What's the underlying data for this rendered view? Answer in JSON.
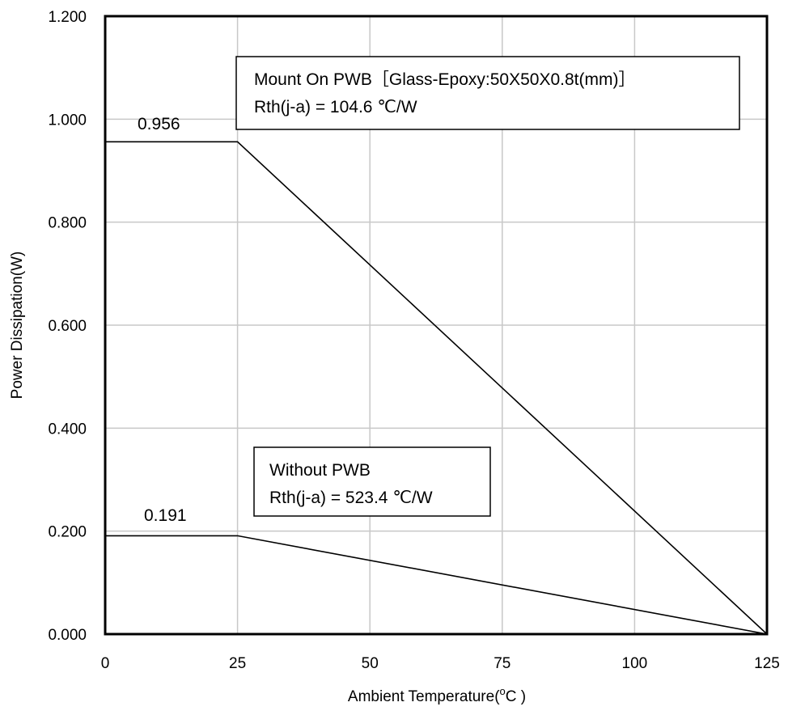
{
  "chart_data": {
    "type": "line",
    "xlabel_main": "Ambient Temperature(",
    "xlabel_sup": "o",
    "xlabel_tail": "C )",
    "ylabel": "Power Dissipation(W)",
    "xlim": [
      0,
      125
    ],
    "ylim": [
      0,
      1.2
    ],
    "x_ticks": [
      "0",
      "25",
      "50",
      "75",
      "100",
      "125"
    ],
    "y_ticks": [
      "0.000",
      "0.200",
      "0.400",
      "0.600",
      "0.800",
      "1.000",
      "1.200"
    ],
    "grid": true,
    "series": [
      {
        "x": [
          0,
          25,
          125
        ],
        "y": [
          0.956,
          0.956,
          0
        ]
      },
      {
        "x": [
          0,
          25,
          125
        ],
        "y": [
          0.191,
          0.191,
          0
        ]
      }
    ],
    "annotations": {
      "series1_value": "0.956",
      "series2_value": "0.191"
    },
    "legend_boxes": [
      {
        "line1": "Mount On PWB［Glass-Epoxy:50X50X0.8t(mm)］",
        "line2": "Rth(j-a) = 104.6 ℃/W"
      },
      {
        "line1": "Without PWB",
        "line2": "Rth(j-a) = 523.4 ℃/W"
      }
    ]
  }
}
